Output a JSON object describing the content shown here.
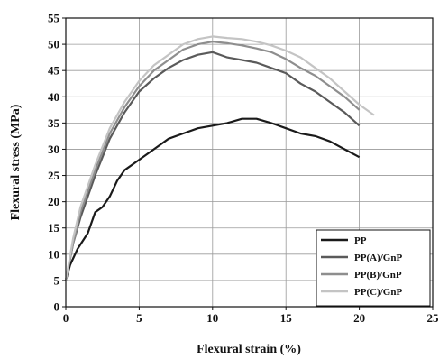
{
  "chart_data": {
    "type": "line",
    "xlabel": "Flexural strain (%)",
    "ylabel": "Flexural stress (MPa)",
    "xlim": [
      0,
      25
    ],
    "ylim": [
      0,
      55
    ],
    "xticks": [
      0,
      5,
      10,
      15,
      20,
      25
    ],
    "yticks": [
      0,
      5,
      10,
      15,
      20,
      25,
      30,
      35,
      40,
      45,
      50,
      55
    ],
    "grid": true,
    "legend_position": "bottom-right",
    "series": [
      {
        "name": "PP",
        "color": "#1a1a1a",
        "points": [
          [
            0,
            5
          ],
          [
            0.3,
            8
          ],
          [
            0.8,
            11
          ],
          [
            1.5,
            14
          ],
          [
            2,
            18
          ],
          [
            2.5,
            19
          ],
          [
            3,
            21
          ],
          [
            3.5,
            24
          ],
          [
            4,
            26
          ],
          [
            5,
            28
          ],
          [
            6,
            30
          ],
          [
            7,
            32
          ],
          [
            8,
            33
          ],
          [
            9,
            34
          ],
          [
            10,
            34.5
          ],
          [
            11,
            35
          ],
          [
            12,
            35.8
          ],
          [
            13,
            35.8
          ],
          [
            14,
            35
          ],
          [
            15,
            34
          ],
          [
            16,
            33
          ],
          [
            17,
            32.5
          ],
          [
            18,
            31.5
          ],
          [
            19,
            30
          ],
          [
            20,
            28.5
          ]
        ]
      },
      {
        "name": "PP(A)/GnP",
        "color": "#5a5a5a",
        "points": [
          [
            0,
            5
          ],
          [
            0.5,
            12
          ],
          [
            1,
            17
          ],
          [
            2,
            25
          ],
          [
            3,
            32
          ],
          [
            4,
            37
          ],
          [
            5,
            41
          ],
          [
            6,
            43.5
          ],
          [
            7,
            45.5
          ],
          [
            8,
            47
          ],
          [
            9,
            48
          ],
          [
            10,
            48.5
          ],
          [
            11,
            47.5
          ],
          [
            12,
            47
          ],
          [
            13,
            46.5
          ],
          [
            14,
            45.5
          ],
          [
            15,
            44.5
          ],
          [
            16,
            42.5
          ],
          [
            17,
            41
          ],
          [
            18,
            39
          ],
          [
            19,
            37
          ],
          [
            20,
            34.5
          ]
        ]
      },
      {
        "name": "PP(B)/GnP",
        "color": "#8e8e8e",
        "points": [
          [
            0,
            5
          ],
          [
            0.5,
            12
          ],
          [
            1,
            18
          ],
          [
            2,
            26
          ],
          [
            3,
            33
          ],
          [
            4,
            38
          ],
          [
            5,
            42
          ],
          [
            6,
            45
          ],
          [
            7,
            47
          ],
          [
            8,
            49
          ],
          [
            9,
            50
          ],
          [
            10,
            50.5
          ],
          [
            11,
            50.2
          ],
          [
            12,
            49.8
          ],
          [
            13,
            49.2
          ],
          [
            14,
            48.5
          ],
          [
            15,
            47.2
          ],
          [
            16,
            45.5
          ],
          [
            17,
            44
          ],
          [
            18,
            42
          ],
          [
            19,
            40
          ],
          [
            20,
            37.5
          ]
        ]
      },
      {
        "name": "PP(C)/GnP",
        "color": "#c4c4c4",
        "points": [
          [
            0,
            5
          ],
          [
            0.5,
            13
          ],
          [
            1,
            19
          ],
          [
            2,
            27
          ],
          [
            3,
            34
          ],
          [
            4,
            39
          ],
          [
            5,
            43
          ],
          [
            6,
            46
          ],
          [
            7,
            48
          ],
          [
            8,
            50
          ],
          [
            9,
            51
          ],
          [
            10,
            51.5
          ],
          [
            11,
            51.2
          ],
          [
            12,
            51
          ],
          [
            13,
            50.5
          ],
          [
            14,
            49.8
          ],
          [
            15,
            48.8
          ],
          [
            16,
            47.5
          ],
          [
            17,
            45.5
          ],
          [
            18,
            43.5
          ],
          [
            19,
            41
          ],
          [
            20,
            38.5
          ],
          [
            21,
            36.5
          ]
        ]
      }
    ]
  }
}
